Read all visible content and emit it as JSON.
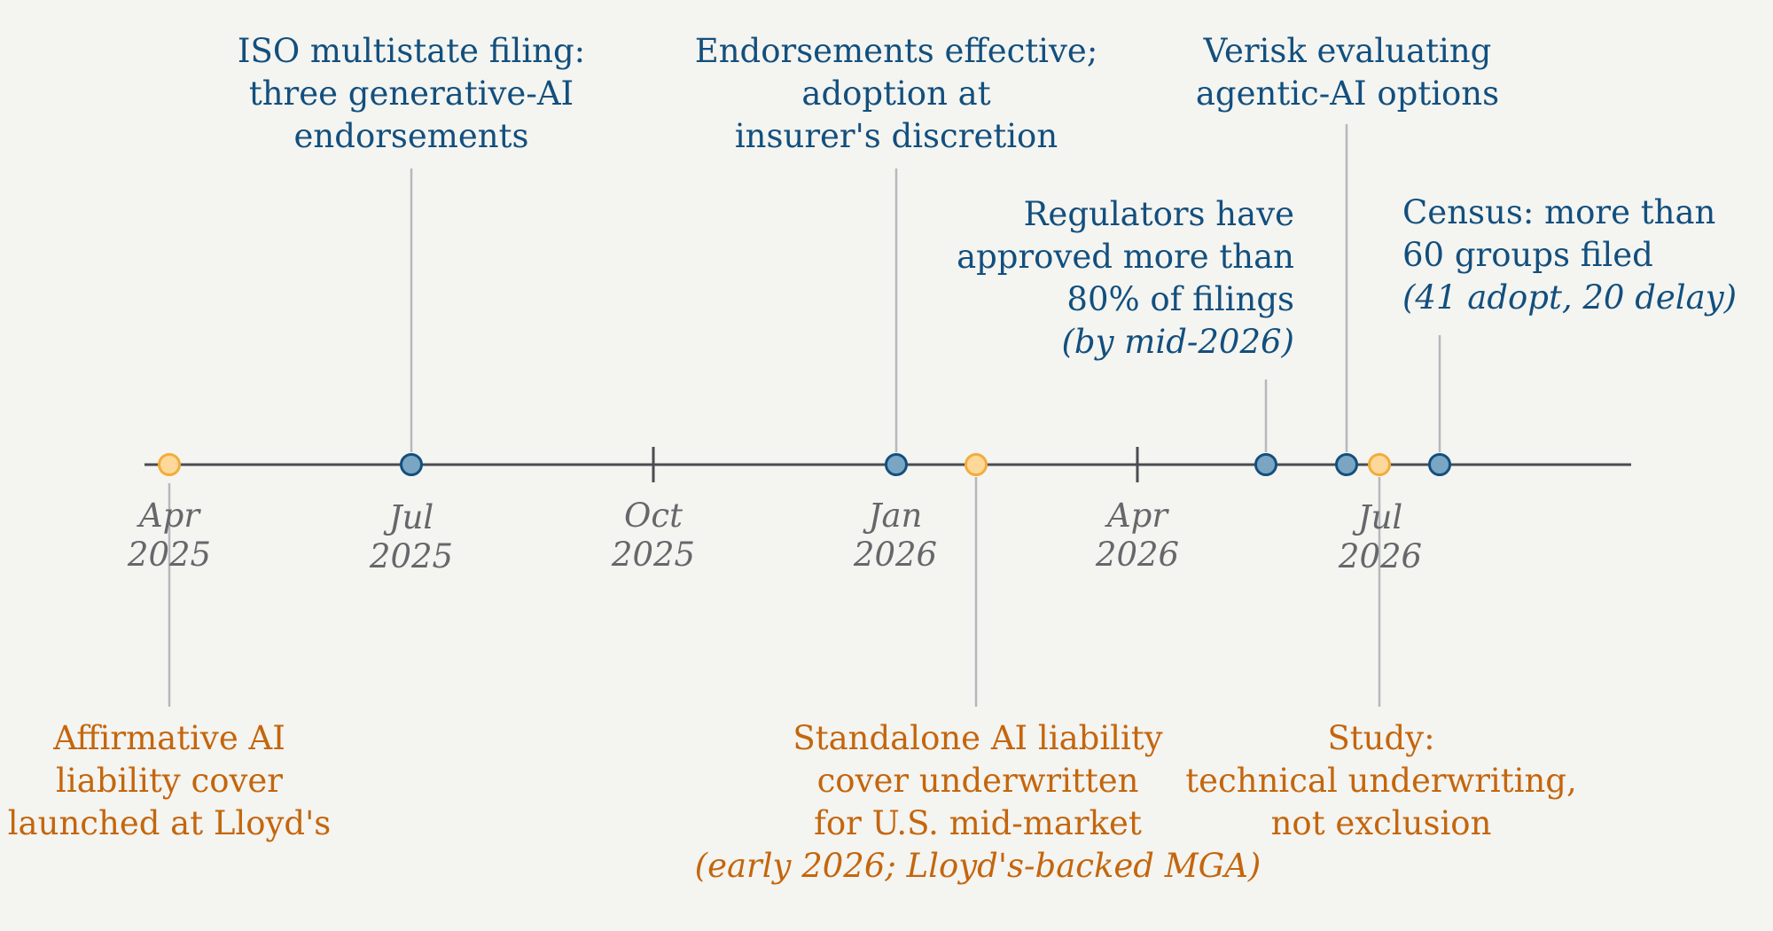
{
  "colors": {
    "background": "#f4f4f0",
    "axis": "#4a4c52",
    "connector": "#b6b8bc",
    "tick_text": "#66676b",
    "blue_text": "#124f7e",
    "blue_marker_fill": "#7aa5c3",
    "blue_marker_stroke": "#124f7e",
    "orange_text": "#c4660d",
    "orange_marker_fill": "#fdd89a",
    "orange_marker_stroke": "#f3ac3a"
  },
  "axis": {
    "start": "2025-04-01",
    "end": "2026-07-01",
    "ticks": [
      {
        "month": "Apr",
        "year": "2025"
      },
      {
        "month": "Jul",
        "year": "2025"
      },
      {
        "month": "Oct",
        "year": "2025"
      },
      {
        "month": "Jan",
        "year": "2026"
      },
      {
        "month": "Apr",
        "year": "2026"
      },
      {
        "month": "Jul",
        "year": "2026"
      }
    ]
  },
  "events": [
    {
      "id": "lloyds-launch",
      "date": "2025-04",
      "category": "market",
      "lines": [
        "Affirmative AI",
        "liability cover",
        "launched at Lloyd's"
      ],
      "note": ""
    },
    {
      "id": "iso-filing",
      "date": "2025-07",
      "category": "regulatory",
      "lines": [
        "ISO multistate filing:",
        "three generative-AI",
        "endorsements"
      ],
      "note": ""
    },
    {
      "id": "endorsements-effective",
      "date": "2026-01",
      "category": "regulatory",
      "lines": [
        "Endorsements effective;",
        "adoption at",
        "insurer's discretion"
      ],
      "note": ""
    },
    {
      "id": "standalone-cover",
      "date": "early 2026",
      "category": "market",
      "lines": [
        "Standalone AI liability",
        "cover underwritten",
        "for U.S. mid-market"
      ],
      "note": "(early 2026; Lloyd's-backed MGA)"
    },
    {
      "id": "regulators-approved",
      "date": "mid-2026",
      "category": "regulatory",
      "lines": [
        "Regulators have",
        "approved more than",
        "80% of filings"
      ],
      "note": "(by mid-2026)"
    },
    {
      "id": "verisk-agentic",
      "date": "mid-2026",
      "category": "regulatory",
      "lines": [
        "Verisk evaluating",
        "agentic-AI options"
      ],
      "note": ""
    },
    {
      "id": "study",
      "date": "2026-07",
      "category": "market",
      "lines": [
        "Study:",
        "technical underwriting,",
        "not exclusion"
      ],
      "note": ""
    },
    {
      "id": "census",
      "date": "2026-07",
      "category": "regulatory",
      "lines": [
        "Census: more than",
        "60 groups filed"
      ],
      "note": "(41 adopt, 20 delay)"
    }
  ]
}
